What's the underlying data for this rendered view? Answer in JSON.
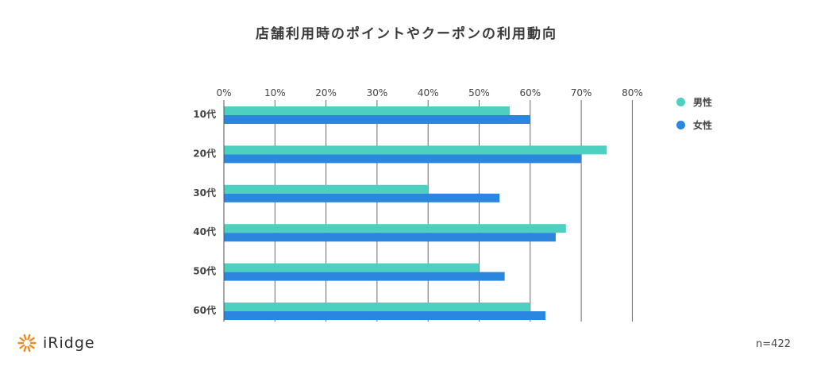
{
  "title": "店舗利用時のポイントやクーポンの利用動向",
  "note": "n=422",
  "logo": {
    "text": "iRidge",
    "icon": "sunburst-logo-icon",
    "color": "#f08a24"
  },
  "chart_data": {
    "type": "bar",
    "orientation": "horizontal",
    "categories": [
      "10代",
      "20代",
      "30代",
      "40代",
      "50代",
      "60代"
    ],
    "series": [
      {
        "name": "男性",
        "color": "#4dd0c0",
        "values": [
          56,
          75,
          40,
          67,
          50,
          60
        ]
      },
      {
        "name": "女性",
        "color": "#2b86e0",
        "values": [
          60,
          70,
          54,
          65,
          55,
          63
        ]
      }
    ],
    "xlim": [
      0,
      80
    ],
    "xticks": [
      "0%",
      "10%",
      "20%",
      "30%",
      "40%",
      "50%",
      "60%",
      "70%",
      "80%"
    ],
    "grid": true,
    "legend_position": "right"
  }
}
